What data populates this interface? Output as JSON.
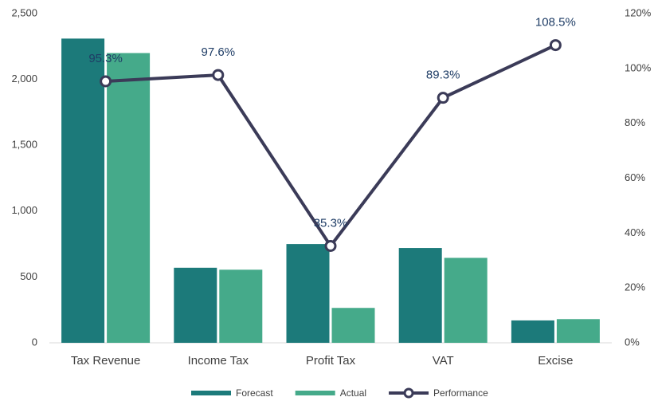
{
  "chart_data": {
    "type": "bar",
    "categories": [
      "Tax Revenue",
      "Income Tax",
      "Profit Tax",
      "VAT",
      "Excise"
    ],
    "series": [
      {
        "name": "Forecast",
        "color": "#1c7a7a",
        "values": [
          2310,
          570,
          750,
          720,
          170
        ]
      },
      {
        "name": "Actual",
        "color": "#45aa8a",
        "values": [
          2200,
          555,
          265,
          645,
          180
        ]
      },
      {
        "name": "Performance",
        "type": "line",
        "axis": "y2",
        "color": "#3b3b58",
        "values": [
          95.3,
          97.6,
          35.3,
          89.3,
          108.5
        ],
        "value_labels": [
          "95.3%",
          "97.6%",
          "35.3%",
          "89.3%",
          "108.5%"
        ]
      }
    ],
    "ylim": [
      0,
      2500
    ],
    "yticks": [
      0,
      500,
      {
        "value": 1000,
        "label": "1,000"
      },
      {
        "value": 1500,
        "label": "1,500"
      },
      {
        "value": 2000,
        "label": "2,000"
      },
      {
        "value": 2500,
        "label": "2,500"
      }
    ],
    "y2lim": [
      0,
      120
    ],
    "y2ticks": [
      {
        "value": 0,
        "label": "0%"
      },
      {
        "value": 20,
        "label": "20%"
      },
      {
        "value": 40,
        "label": "40%"
      },
      {
        "value": 60,
        "label": "60%"
      },
      {
        "value": 80,
        "label": "80%"
      },
      {
        "value": 100,
        "label": "100%"
      },
      {
        "value": 120,
        "label": "120%"
      }
    ],
    "legend": "bottom"
  }
}
